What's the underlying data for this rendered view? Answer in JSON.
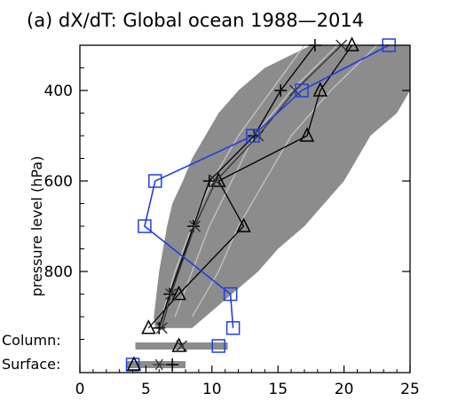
{
  "chart_data": {
    "type": "line",
    "title": "(a) dX/dT: Global ocean 1988—2014",
    "ylabel": "pressure level (hPa)",
    "xlabel": "",
    "xlim": [
      0,
      25
    ],
    "ylim": [
      300,
      1000
    ],
    "y_inverted": true,
    "grid": false,
    "x_ticks": [
      "0",
      "5",
      "10",
      "15",
      "20",
      "25"
    ],
    "x_tick_values": [
      0,
      5,
      10,
      15,
      20,
      25
    ],
    "y_ticks": [
      "400",
      "600",
      "800"
    ],
    "y_tick_values": [
      400,
      600,
      800
    ],
    "row_labels": [
      "Column:",
      "Surface:"
    ],
    "colors": {
      "spread": "#8c8c8c",
      "spread_lines": "#c8c8c8",
      "black": "#000000",
      "blue": "#1f3fe0",
      "surface_bar": "#8c8c8c"
    },
    "spread_band": {
      "pressure": [
        300,
        350,
        400,
        450,
        500,
        550,
        600,
        650,
        700,
        750,
        800,
        850,
        900,
        925
      ],
      "low": [
        17.5,
        14.0,
        12.0,
        10.5,
        9.5,
        8.5,
        7.8,
        7.0,
        6.6,
        6.3,
        6.0,
        5.8,
        5.6,
        5.7
      ],
      "high": [
        25.0,
        25.0,
        25.0,
        24.0,
        22.0,
        21.0,
        20.0,
        18.5,
        17.0,
        15.0,
        13.5,
        11.5,
        9.5,
        8.5
      ]
    },
    "spread_inner_lines": [
      {
        "pressure": [
          300,
          400,
          500,
          600,
          700,
          800,
          900
        ],
        "x": [
          19.5,
          16.0,
          13.2,
          11.5,
          9.8,
          8.5,
          7.2
        ]
      },
      {
        "pressure": [
          300,
          400,
          500,
          600,
          700,
          800,
          900
        ],
        "x": [
          22.5,
          19.0,
          16.0,
          14.0,
          12.0,
          10.5,
          8.5
        ]
      },
      {
        "pressure": [
          300,
          400,
          500,
          600,
          700,
          800,
          900
        ],
        "x": [
          17.0,
          14.5,
          12.0,
          10.0,
          8.5,
          7.2,
          6.2
        ]
      }
    ],
    "series": [
      {
        "marker": "triangle",
        "color": "#000000",
        "pressure": [
          300,
          400,
          500,
          600,
          700,
          850,
          925
        ],
        "values": [
          20.6,
          18.2,
          17.2,
          10.5,
          12.4,
          7.5,
          5.2
        ]
      },
      {
        "marker": "plus",
        "color": "#000000",
        "pressure": [
          300,
          400,
          500,
          600,
          700,
          850,
          925
        ],
        "values": [
          17.8,
          15.2,
          13.2,
          9.8,
          8.6,
          6.8,
          6.0
        ]
      },
      {
        "marker": "cross",
        "color": "#333333",
        "pressure": [
          300,
          400,
          500,
          600,
          700,
          850,
          925
        ],
        "values": [
          19.8,
          16.3,
          13.5,
          10.3,
          8.7,
          6.9,
          6.2
        ]
      },
      {
        "marker": "square",
        "color": "#1f3fe0",
        "pressure": [
          300,
          400,
          500,
          600,
          700,
          850,
          925
        ],
        "values": [
          23.4,
          16.8,
          13.1,
          5.7,
          4.9,
          11.4,
          11.6
        ]
      }
    ],
    "column_markers": [
      {
        "marker": "square",
        "color": "#1f3fe0",
        "value": 10.5
      },
      {
        "marker": "triangle",
        "color": "#000000",
        "value": 7.5
      },
      {
        "marker": "cross",
        "color": "#333333",
        "value": 7.7
      }
    ],
    "column_spread": [
      4.2,
      11.2
    ],
    "surface_markers": [
      {
        "marker": "square",
        "color": "#1f3fe0",
        "value": 4.0
      },
      {
        "marker": "triangle",
        "color": "#000000",
        "value": 4.1
      },
      {
        "marker": "asterisk",
        "color": "#333333",
        "value": 6.0
      },
      {
        "marker": "plus",
        "color": "#000000",
        "value": 7.0
      }
    ],
    "surface_spread": [
      3.5,
      8.0
    ]
  }
}
